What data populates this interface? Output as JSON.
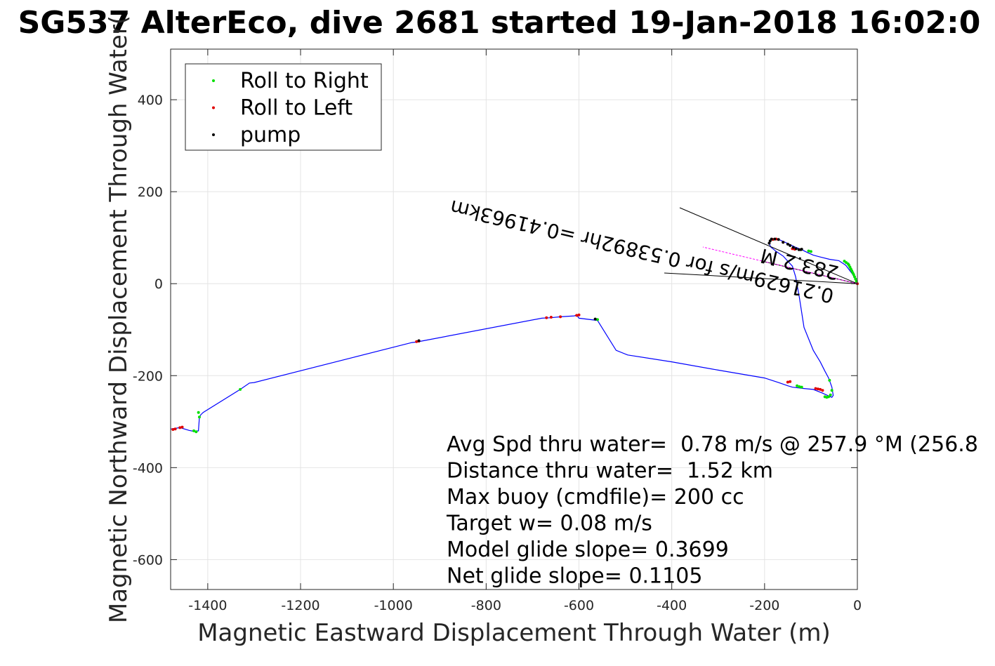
{
  "chart_data": {
    "type": "line",
    "title": "SG537 AlterEco, dive 2681 started 19-Jan-2018 16:02:0",
    "xlabel": "Magnetic Eastward Displacement Through Water (m)",
    "ylabel": "Magnetic Northward Displacement Through Water(",
    "xlim": [
      -1480,
      0
    ],
    "ylim": [
      -665,
      510
    ],
    "xticks": [
      -1400,
      -1200,
      -1000,
      -800,
      -600,
      -400,
      -200,
      0
    ],
    "yticks": [
      -600,
      -400,
      -200,
      0,
      200,
      400
    ],
    "grid": true,
    "legend": {
      "position": "top-left",
      "entries": [
        {
          "label": "Roll to Right",
          "color": "#00e000"
        },
        {
          "label": "Roll to Left",
          "color": "#e00000"
        },
        {
          "label": "pump",
          "color": "#000000"
        }
      ]
    },
    "series": [
      {
        "color": "#0000ff",
        "x": [
          0,
          -10,
          -25,
          -40,
          -60,
          -80,
          -95,
          -108,
          -118,
          -125,
          -135,
          -145,
          -160,
          -172,
          -182,
          -188,
          -190,
          -187,
          -175,
          -160,
          -140,
          -133,
          -125,
          -115,
          -105,
          -95,
          -80,
          -70,
          -62,
          -55,
          -52,
          -55,
          -60,
          -75,
          -95,
          -115,
          -140,
          -150,
          -170,
          -200,
          -300,
          -400,
          -495,
          -520,
          -560,
          -600,
          -605,
          -610,
          -640,
          -660,
          -680,
          -940,
          -950,
          -960,
          -1300,
          -1310,
          -1330,
          -1410,
          -1415,
          -1418,
          -1420,
          -1430,
          -1440,
          -1460,
          -1480
        ],
        "y": [
          0,
          20,
          40,
          50,
          53,
          58,
          62,
          68,
          73,
          76,
          80,
          85,
          92,
          97,
          97,
          95,
          88,
          80,
          70,
          60,
          38,
          15,
          -30,
          -95,
          -120,
          -145,
          -170,
          -190,
          -205,
          -225,
          -243,
          -247,
          -245,
          -238,
          -230,
          -228,
          -225,
          -222,
          -215,
          -205,
          -188,
          -170,
          -155,
          -145,
          -80,
          -75,
          -68,
          -70,
          -72,
          -74,
          -75,
          -125,
          -127,
          -128,
          -215,
          -216,
          -230,
          -280,
          -285,
          -290,
          -320,
          -321,
          -319,
          -313,
          -316
        ]
      }
    ],
    "roll_right_points": [
      [
        -2,
        5
      ],
      [
        -4,
        10
      ],
      [
        -6,
        15
      ],
      [
        -8,
        20
      ],
      [
        -10,
        24
      ],
      [
        -12,
        28
      ],
      [
        -14,
        32
      ],
      [
        -16,
        36
      ],
      [
        -18,
        40
      ],
      [
        -20,
        43
      ],
      [
        -24,
        46
      ],
      [
        -28,
        49
      ],
      [
        -100,
        70
      ],
      [
        -105,
        71
      ],
      [
        -60,
        -210
      ],
      [
        -55,
        -232
      ],
      [
        -58,
        -242
      ],
      [
        -62,
        -246
      ],
      [
        -66,
        -247
      ],
      [
        -70,
        -246
      ],
      [
        -130,
        -222
      ],
      [
        -125,
        -224
      ],
      [
        -120,
        -225
      ],
      [
        -560,
        -78
      ],
      [
        -1330,
        -230
      ],
      [
        -1418,
        -290
      ],
      [
        -1420,
        -280
      ],
      [
        -1425,
        -322
      ],
      [
        -1430,
        -320
      ]
    ],
    "roll_left_points": [
      [
        0,
        0
      ],
      [
        -135,
        75
      ],
      [
        -140,
        76
      ],
      [
        -160,
        90
      ],
      [
        -175,
        97
      ],
      [
        -182,
        96
      ],
      [
        -145,
        -213
      ],
      [
        -150,
        -214
      ],
      [
        -90,
        -228
      ],
      [
        -85,
        -229
      ],
      [
        -80,
        -230
      ],
      [
        -75,
        -232
      ],
      [
        -600,
        -68
      ],
      [
        -605,
        -69
      ],
      [
        -640,
        -72
      ],
      [
        -660,
        -73
      ],
      [
        -670,
        -74
      ],
      [
        -945,
        -125
      ],
      [
        -950,
        -126
      ],
      [
        -1455,
        -312
      ],
      [
        -1460,
        -313
      ],
      [
        -1470,
        -316
      ],
      [
        -1475,
        -317
      ]
    ],
    "pump_points": [
      [
        -185,
        97
      ],
      [
        -188,
        93
      ],
      [
        -190,
        88
      ],
      [
        -160,
        90
      ],
      [
        -150,
        86
      ],
      [
        -145,
        83
      ],
      [
        -138,
        79
      ],
      [
        -132,
        76
      ],
      [
        -126,
        74
      ],
      [
        -120,
        75
      ],
      [
        -122,
        74
      ],
      [
        -170,
        96
      ],
      [
        -178,
        97
      ],
      [
        -565,
        -77
      ],
      [
        -945,
        -124
      ]
    ],
    "annotations": {
      "vector_label": "0.21629m/s for 0.53892hr =0.41963km",
      "heading_label": "283.2 M",
      "stats": [
        "Avg Spd thru water=  0.78 m/s @ 257.9 °M (256.8",
        "Distance thru water=  1.52 km",
        "Max buoy (cmdfile)= 200 cc",
        "Target w= 0.08 m/s",
        "Model glide slope= 0.3699",
        "Net glide slope= 0.1105"
      ]
    }
  }
}
